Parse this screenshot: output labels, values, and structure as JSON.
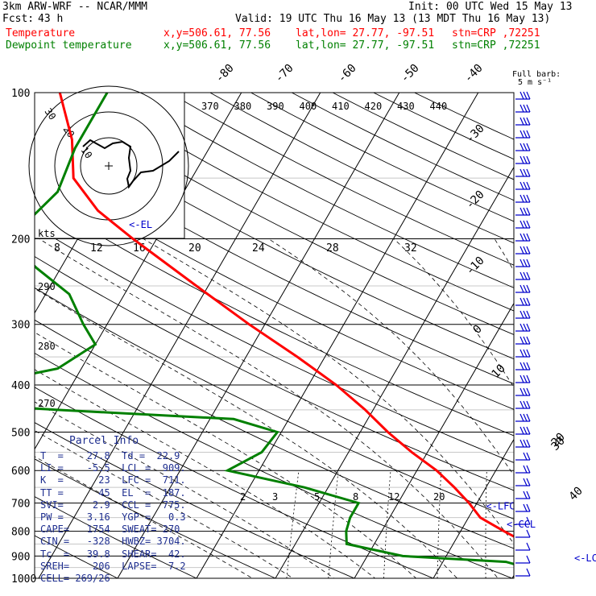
{
  "header": {
    "model": "3km ARW-WRF -- NCAR/MMM",
    "init": "Init: 00 UTC Wed 15 May 13",
    "fcst_label": "Fcst:",
    "fcst_hours": "43 h",
    "valid": "Valid: 19 UTC Thu 16 May 13 (13 MDT Thu 16 May 13)",
    "temp_label": "Temperature",
    "dew_label": "Dewpoint temperature",
    "xy": "x,y=506.61, 77.56",
    "latlon": "lat,lon= 27.77, -97.51",
    "stn": "stn=CRP ,72251"
  },
  "colors": {
    "temperature": "#ff0000",
    "dewpoint": "#008000",
    "barbs": "#0000cc",
    "parcel": "#1f2f8f",
    "hodograph": "#000000"
  },
  "chart_data": {
    "type": "skew-t",
    "ylabel_ticks": [
      "100",
      "200",
      "300",
      "400",
      "500",
      "600",
      "700",
      "800",
      "900",
      "1000"
    ],
    "pressure_range_hPa": [
      100,
      1050
    ],
    "isotherm_labels": [
      "-80",
      "-70",
      "-60",
      "-50",
      "-40",
      "-30",
      "-20",
      "-10",
      "0",
      "10",
      "20",
      "30",
      "40"
    ],
    "theta_labels": [
      "370",
      "380",
      "390",
      "400",
      "410",
      "420",
      "430",
      "440"
    ],
    "mixing_ratio_labels": [
      "2",
      "3",
      "5",
      "8",
      "12",
      "20"
    ],
    "low_theta_labels": [
      "290",
      "280",
      "270"
    ],
    "barb_key": "Full barb:\n5 m s⁻¹",
    "annotations": [
      "<-EL",
      "<-LFC",
      "<-CCL",
      "<-LCL"
    ],
    "temperature_profile": [
      {
        "p": 1000,
        "t": 27.8
      },
      {
        "p": 975,
        "t": 25.5
      },
      {
        "p": 950,
        "t": 26.8
      },
      {
        "p": 925,
        "t": 25.5
      },
      {
        "p": 900,
        "t": 24.0
      },
      {
        "p": 875,
        "t": 22.0
      },
      {
        "p": 850,
        "t": 19.5
      },
      {
        "p": 800,
        "t": 15.5
      },
      {
        "p": 750,
        "t": 11.5
      },
      {
        "p": 700,
        "t": 9.0
      },
      {
        "p": 650,
        "t": 6.0
      },
      {
        "p": 600,
        "t": 2.5
      },
      {
        "p": 550,
        "t": -2.0
      },
      {
        "p": 500,
        "t": -6.5
      },
      {
        "p": 450,
        "t": -11.0
      },
      {
        "p": 400,
        "t": -16.5
      },
      {
        "p": 350,
        "t": -23.5
      },
      {
        "p": 300,
        "t": -32.0
      },
      {
        "p": 250,
        "t": -41.5
      },
      {
        "p": 200,
        "t": -53.0
      },
      {
        "p": 175,
        "t": -59.5
      },
      {
        "p": 150,
        "t": -65.0
      },
      {
        "p": 125,
        "t": -68.0
      },
      {
        "p": 100,
        "t": -73.0
      }
    ],
    "dewpoint_profile": [
      {
        "p": 1000,
        "t": 22.9
      },
      {
        "p": 975,
        "t": 22.0
      },
      {
        "p": 950,
        "t": 21.0
      },
      {
        "p": 925,
        "t": 18.0
      },
      {
        "p": 900,
        "t": 4.5
      },
      {
        "p": 850,
        "t": -3.5
      },
      {
        "p": 800,
        "t": -4.5
      },
      {
        "p": 750,
        "t": -5.0
      },
      {
        "p": 700,
        "t": -5.0
      },
      {
        "p": 650,
        "t": -13.0
      },
      {
        "p": 600,
        "t": -24.0
      },
      {
        "p": 550,
        "t": -21.0
      },
      {
        "p": 500,
        "t": -20.5
      },
      {
        "p": 470,
        "t": -27.0
      },
      {
        "p": 450,
        "t": -50.0
      },
      {
        "p": 430,
        "t": -70.0
      },
      {
        "p": 400,
        "t": -62.0
      },
      {
        "p": 370,
        "t": -53.0
      },
      {
        "p": 330,
        "t": -50.0
      },
      {
        "p": 300,
        "t": -53.0
      },
      {
        "p": 260,
        "t": -57.0
      },
      {
        "p": 230,
        "t": -63.0
      },
      {
        "p": 205,
        "t": -68.0
      },
      {
        "p": 190,
        "t": -68.0
      },
      {
        "p": 160,
        "t": -66.0
      },
      {
        "p": 130,
        "t": -67.0
      },
      {
        "p": 100,
        "t": -67.0
      }
    ],
    "level_markers": [
      {
        "label": "<-EL",
        "p": 187
      },
      {
        "label": "<-LFC",
        "p": 711
      },
      {
        "label": "<-CCL",
        "p": 775
      },
      {
        "label": "<-LCL",
        "p": 909
      }
    ],
    "hodograph": {
      "units": "kts",
      "ring_labels": [
        "30",
        "20",
        "10"
      ],
      "speed_axis_labels": [
        "8",
        "12",
        "16",
        "20",
        "24",
        "28",
        "32"
      ]
    }
  },
  "parcel": {
    "title": "Parcel Info",
    "rows": [
      "T  =    27.8  Td =  22.9",
      "LI =    -5.5  LCL =  909.",
      "K  =      23  LFC =  711.",
      "TT =      45  EL  =  187.",
      "SVI=     2.9  CCL =  775.",
      "PW =    3.16  YGP =   0.3",
      "CAPE=   1754  SWEAT= 270",
      "CIN =   -328  HWBZ= 3704.",
      "Tc  =   39.8  SHEAR=  42.",
      "SREH=    206  LAPSE=  7.2",
      "CELL= 269/26"
    ]
  }
}
